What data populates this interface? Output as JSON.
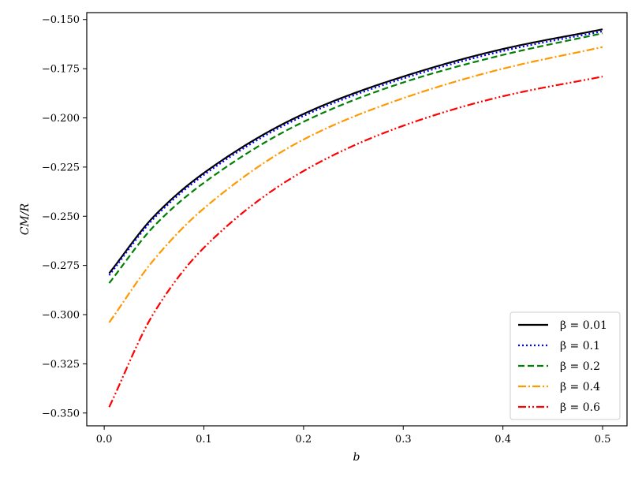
{
  "chart_data": {
    "type": "line",
    "title": "",
    "xlabel": "b",
    "ylabel": "CM/R",
    "xlim": [
      -0.0175,
      0.5245
    ],
    "ylim": [
      -0.3565,
      -0.1465
    ],
    "xticks": [
      0.0,
      0.1,
      0.2,
      0.3,
      0.4,
      0.5
    ],
    "xtick_labels": [
      "0.0",
      "0.1",
      "0.2",
      "0.3",
      "0.4",
      "0.5"
    ],
    "yticks": [
      -0.35,
      -0.325,
      -0.3,
      -0.275,
      -0.25,
      -0.225,
      -0.2,
      -0.175,
      -0.15
    ],
    "ytick_labels": [
      "−0.350",
      "−0.325",
      "−0.300",
      "−0.275",
      "−0.250",
      "−0.225",
      "−0.200",
      "−0.175",
      "−0.150"
    ],
    "grid": false,
    "legend_position": "bottom-right",
    "x": [
      0.005,
      0.05,
      0.1,
      0.2,
      0.3,
      0.4,
      0.5
    ],
    "series": [
      {
        "name": "β = 0.01",
        "legend_label": "β = 0.01",
        "color": "#000000",
        "style": "solid",
        "values": [
          -0.279,
          -0.25,
          -0.228,
          -0.198,
          -0.179,
          -0.165,
          -0.155
        ]
      },
      {
        "name": "β = 0.1",
        "legend_label": "β = 0.1",
        "color": "#0000ff",
        "style": "dotted",
        "values": [
          -0.28,
          -0.251,
          -0.229,
          -0.199,
          -0.18,
          -0.166,
          -0.156
        ]
      },
      {
        "name": "β = 0.2",
        "legend_label": "β = 0.2",
        "color": "#008000",
        "style": "dashed",
        "values": [
          -0.284,
          -0.255,
          -0.233,
          -0.202,
          -0.182,
          -0.168,
          -0.157
        ]
      },
      {
        "name": "β = 0.4",
        "legend_label": "β = 0.4",
        "color": "#ff9900",
        "style": "dashdot",
        "values": [
          -0.304,
          -0.272,
          -0.246,
          -0.211,
          -0.19,
          -0.175,
          -0.164
        ]
      },
      {
        "name": "β = 0.6",
        "legend_label": "β = 0.6",
        "color": "#ff0000",
        "style": "dashdotdot",
        "values": [
          -0.347,
          -0.299,
          -0.266,
          -0.227,
          -0.204,
          -0.189,
          -0.179
        ]
      }
    ]
  }
}
